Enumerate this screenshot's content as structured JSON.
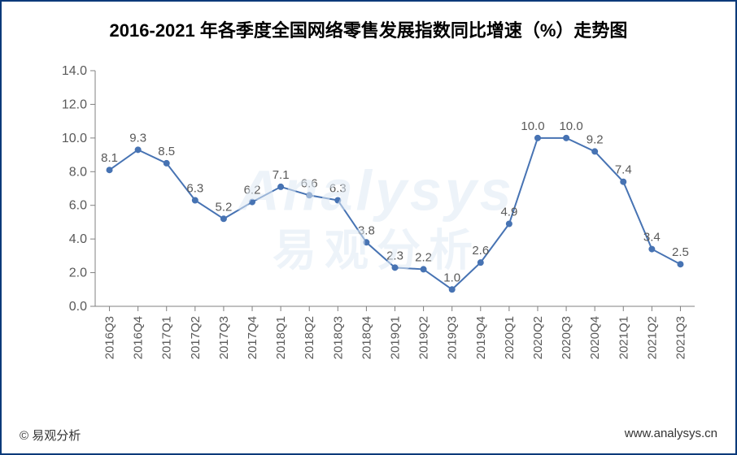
{
  "title": "2016-2021 年各季度全国网络零售发展指数同比增速（%）走势图",
  "title_fontsize": 22,
  "title_color": "#000000",
  "chart": {
    "type": "line",
    "categories": [
      "2016Q3",
      "2016Q4",
      "2017Q1",
      "2017Q2",
      "2017Q3",
      "2017Q4",
      "2018Q1",
      "2018Q2",
      "2018Q3",
      "2018Q4",
      "2019Q1",
      "2019Q2",
      "2019Q3",
      "2019Q4",
      "2020Q1",
      "2020Q2",
      "2020Q3",
      "2020Q4",
      "2021Q1",
      "2021Q2",
      "2021Q3"
    ],
    "values": [
      8.1,
      9.3,
      8.5,
      6.3,
      5.2,
      6.2,
      7.1,
      6.6,
      6.3,
      3.8,
      2.3,
      2.2,
      1.0,
      2.6,
      4.9,
      10.0,
      10.0,
      9.2,
      7.4,
      3.4,
      2.5
    ],
    "value_labels": [
      "8.1",
      "9.3",
      "8.5",
      "6.3",
      "5.2",
      "6.2",
      "7.1",
      "6.6",
      "6.3",
      "3.8",
      "2.3",
      "2.2",
      "1.0",
      "2.6",
      "4.9",
      "10.0",
      "10.0",
      "9.2",
      "7.4",
      "3.4",
      "2.5"
    ],
    "line_color": "#4773b3",
    "marker_fill": "#4773b3",
    "marker_stroke": "#4773b3",
    "marker_radius": 3.5,
    "line_width": 2,
    "ylim": [
      0.0,
      14.0
    ],
    "ytick_step": 2.0,
    "ytick_decimals": 1,
    "axis_color": "#808080",
    "tick_color": "#808080",
    "y_label_color": "#595959",
    "y_label_fontsize": 16,
    "x_label_color": "#595959",
    "x_label_fontsize": 15,
    "data_label_color": "#595959",
    "data_label_fontsize": 15,
    "background_color": "#ffffff",
    "x_label_rotation": -90
  },
  "watermark": {
    "line1": "Analysys",
    "line2": "易观分析",
    "color": "#dfeaf5"
  },
  "footer": {
    "left": "©  易观分析",
    "right": "www.analysys.cn",
    "color": "#333333",
    "fontsize": 15
  },
  "frame_border_color": "#0a3a7a"
}
